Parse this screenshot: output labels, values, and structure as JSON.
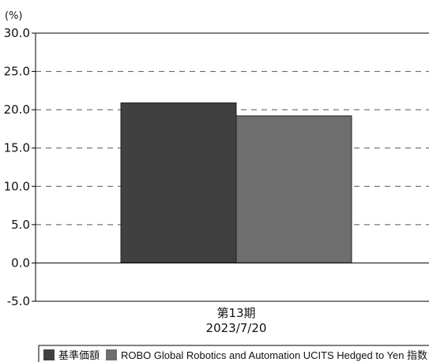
{
  "chart_data": {
    "type": "bar",
    "y_unit_label": "(%)",
    "ylim": [
      -5.0,
      30.0
    ],
    "y_ticks": [
      {
        "value": -5.0,
        "label": "-5.0"
      },
      {
        "value": 0.0,
        "label": "0.0"
      },
      {
        "value": 5.0,
        "label": "5.0"
      },
      {
        "value": 10.0,
        "label": "10.0"
      },
      {
        "value": 15.0,
        "label": "15.0"
      },
      {
        "value": 20.0,
        "label": "20.0"
      },
      {
        "value": 25.0,
        "label": "25.0"
      },
      {
        "value": 30.0,
        "label": "30.0"
      }
    ],
    "grid": "dashed horizontal",
    "categories": [
      {
        "line1": "第13期",
        "line2": "2023/7/20"
      }
    ],
    "series": [
      {
        "name": "基準価額",
        "color": "#404040",
        "values": [
          20.9
        ]
      },
      {
        "name": "ROBO Global Robotics and Automation UCITS Hedged to Yen 指数",
        "color": "#6e6e6e",
        "values": [
          19.2
        ]
      }
    ],
    "legend_position": "bottom"
  }
}
